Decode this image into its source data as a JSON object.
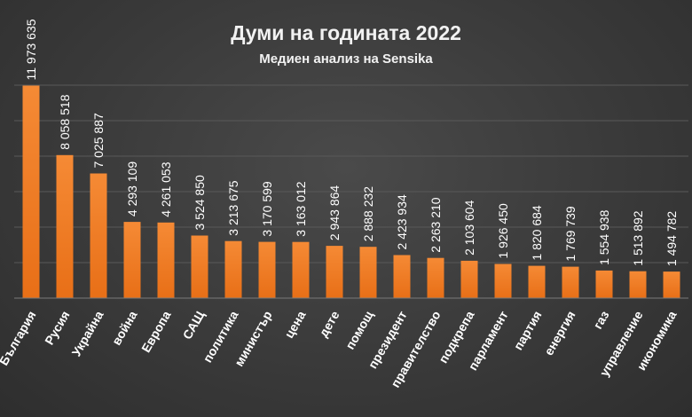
{
  "chart_data": {
    "type": "bar",
    "title": "Думи на годината 2022",
    "subtitle": "Медиен анализ на Sensika",
    "categories": [
      "България",
      "Русия",
      "Украйна",
      "война",
      "Европа",
      "САЩ",
      "политика",
      "министър",
      "цена",
      "дете",
      "помощ",
      "президент",
      "правителство",
      "подкрепа",
      "парламент",
      "партия",
      "енергия",
      "газ",
      "управление",
      "икономика"
    ],
    "values": [
      11973635,
      8058518,
      7025887,
      4293109,
      4261053,
      3524850,
      3213675,
      3170599,
      3163012,
      2943864,
      2888232,
      2423934,
      2263210,
      2103604,
      1926450,
      1820684,
      1769739,
      1554938,
      1513892,
      1494782
    ],
    "value_labels": [
      "11 973 635",
      "8 058 518",
      "7 025 887",
      "4 293 109",
      "4 261 053",
      "3 524 850",
      "3 213 675",
      "3 170 599",
      "3 163 012",
      "2 943 864",
      "2 888 232",
      "2 423 934",
      "2 263 210",
      "2 103 604",
      "1 926 450",
      "1 820 684",
      "1 769 739",
      "1 554 938",
      "1 513 892",
      "1 494 782"
    ],
    "ylim": [
      0,
      12000000
    ],
    "grid": true,
    "legend": "none",
    "bar_color": "#f07f2a"
  }
}
